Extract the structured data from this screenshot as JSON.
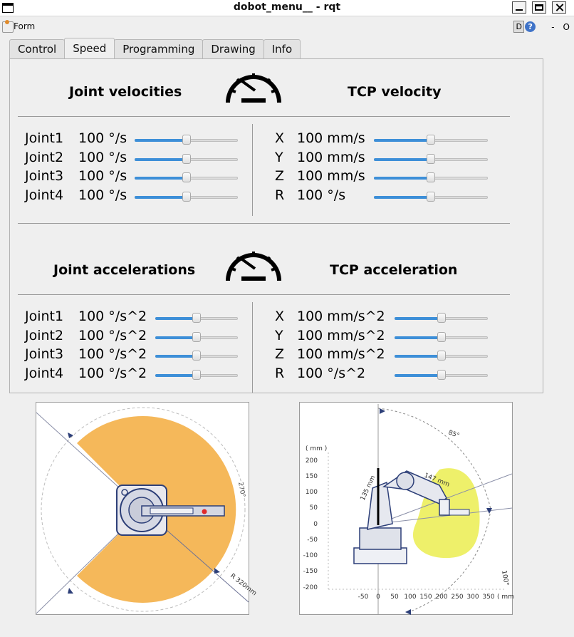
{
  "window": {
    "title": "dobot_menu__ - rqt"
  },
  "toolbar": {
    "form_label": "Form",
    "d_label": "D",
    "help_label": "?",
    "dash_label": "-",
    "o_label": "O"
  },
  "tabs": [
    {
      "label": "Control"
    },
    {
      "label": "Speed"
    },
    {
      "label": "Programming"
    },
    {
      "label": "Drawing"
    },
    {
      "label": "Info"
    }
  ],
  "active_tab": "Speed",
  "speed": {
    "joint_velocities": {
      "title": "Joint velocities",
      "rows": [
        {
          "name": "Joint1",
          "value": "100 °/s",
          "fraction": 0.5
        },
        {
          "name": "Joint2",
          "value": "100 °/s",
          "fraction": 0.5
        },
        {
          "name": "Joint3",
          "value": "100 °/s",
          "fraction": 0.5
        },
        {
          "name": "Joint4",
          "value": "100 °/s",
          "fraction": 0.5
        }
      ]
    },
    "tcp_velocity": {
      "title": "TCP velocity",
      "rows": [
        {
          "name": "X",
          "value": "100 mm/s",
          "fraction": 0.5
        },
        {
          "name": "Y",
          "value": "100 mm/s",
          "fraction": 0.5
        },
        {
          "name": "Z",
          "value": "100 mm/s",
          "fraction": 0.5
        },
        {
          "name": "R",
          "value": "100 °/s",
          "fraction": 0.5
        }
      ]
    },
    "joint_accelerations": {
      "title": "Joint accelerations",
      "rows": [
        {
          "name": "Joint1",
          "value": "100 °/s^2",
          "fraction": 0.5
        },
        {
          "name": "Joint2",
          "value": "100 °/s^2",
          "fraction": 0.5
        },
        {
          "name": "Joint3",
          "value": "100 °/s^2",
          "fraction": 0.5
        },
        {
          "name": "Joint4",
          "value": "100 °/s^2",
          "fraction": 0.5
        }
      ]
    },
    "tcp_acceleration": {
      "title": "TCP acceleration",
      "rows": [
        {
          "name": "X",
          "value": "100 mm/s^2",
          "fraction": 0.5
        },
        {
          "name": "Y",
          "value": "100 mm/s^2",
          "fraction": 0.5
        },
        {
          "name": "Z",
          "value": "100 mm/s^2",
          "fraction": 0.5
        },
        {
          "name": "R",
          "value": "100 °/s^2",
          "fraction": 0.5
        }
      ]
    }
  },
  "top_view": {
    "labels": {
      "angle": "270°",
      "radius": "R 320mm"
    }
  },
  "side_view": {
    "labels": {
      "unit": "( mm )",
      "y_ticks": [
        "200",
        "150",
        "100",
        "50",
        "0",
        "-50",
        "-100",
        "-150",
        "-200"
      ],
      "x_ticks": [
        "-50",
        "0",
        "50",
        "100",
        "150",
        "200",
        "250",
        "300",
        "350",
        "( mm"
      ],
      "arm1": "135 mm",
      "arm2": "147 mm",
      "angle1": "85°",
      "angle2": "100°"
    }
  },
  "colors": {
    "accent": "#3d8fd8",
    "workspace_orange": "#f5b85a",
    "workspace_yellow": "#eef06a",
    "diagram_blue": "#2d3f78"
  }
}
